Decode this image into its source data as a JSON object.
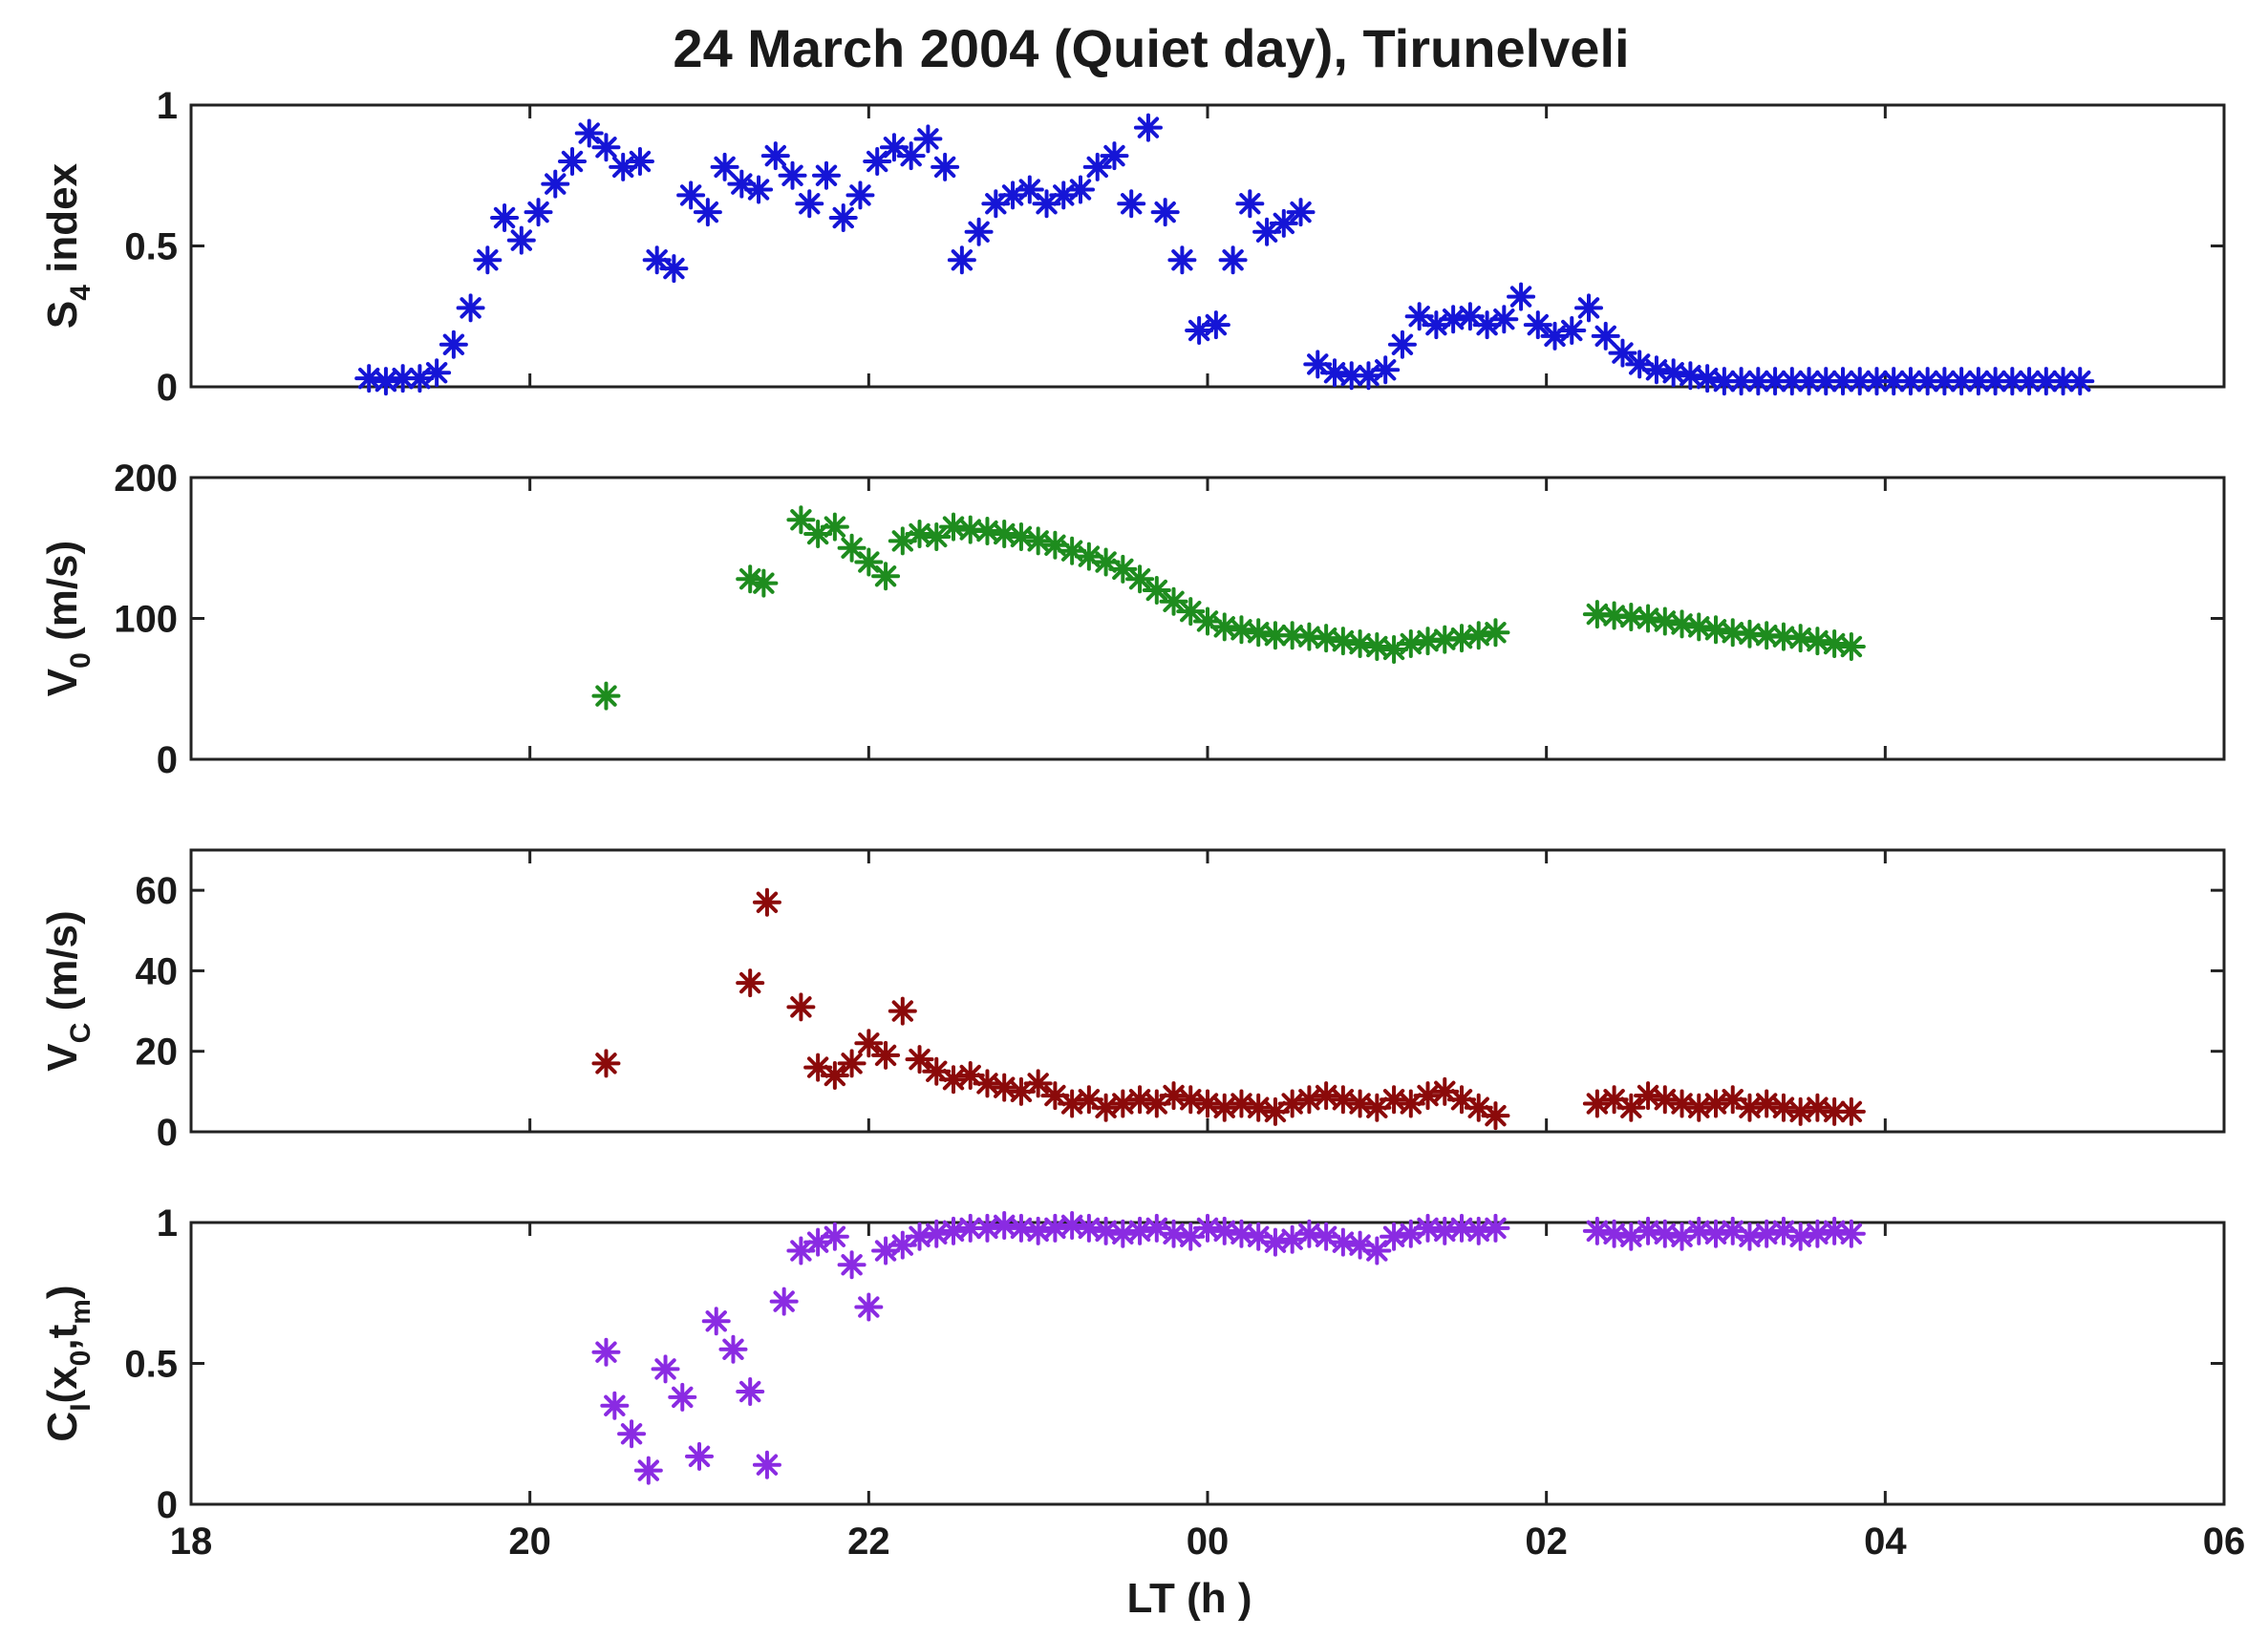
{
  "title": "24 March 2004 (Quiet day), Tirunelveli",
  "xlabel": "LT (h )",
  "panels_ylabels": [
    {
      "main": "S",
      "sub": "4",
      "rest": " index"
    },
    {
      "main": "V",
      "sub": "0",
      "rest": " (m/s)"
    },
    {
      "main": "V",
      "sub": "C",
      "rest": " (m/s)"
    },
    {
      "main": "C",
      "sub": "I",
      "rest": "(x",
      "sub2": "0",
      "rest2": ",t",
      "sub3": "m",
      "rest3": ")"
    }
  ],
  "chart_data": {
    "type": "scatter",
    "title": "24 March 2004 (Quiet day), Tirunelveli",
    "xlabel": "LT (h )",
    "xlim": [
      18,
      30
    ],
    "xticks": [
      18,
      20,
      22,
      24,
      26,
      28,
      30
    ],
    "xtick_labels": [
      "18",
      "20",
      "22",
      "00",
      "02",
      "04",
      "06"
    ],
    "x_unit_note": "hours after 00 LT wrap, 24 = 00, 26 = 02, 28 = 04",
    "shared_x": true,
    "marker": "asterisk",
    "panels": [
      {
        "ylabel": "S4 index",
        "ylim": [
          0,
          1
        ],
        "yticks": [
          0,
          0.5,
          1
        ],
        "ytick_labels": [
          "0",
          "0.5",
          "1"
        ],
        "color": "#1515d6",
        "series": [
          {
            "x": [
              19.05,
              19.15,
              19.25,
              19.35,
              19.45,
              19.55,
              19.65,
              19.75,
              19.85,
              19.95,
              20.05,
              20.15,
              20.25,
              20.35,
              20.45,
              20.55,
              20.65,
              20.75,
              20.85,
              20.95,
              21.05,
              21.15,
              21.25,
              21.35,
              21.45,
              21.55,
              21.65,
              21.75,
              21.85,
              21.95,
              22.05,
              22.15,
              22.25,
              22.35,
              22.45,
              22.55,
              22.65,
              22.75,
              22.85,
              22.95,
              23.05,
              23.15,
              23.25,
              23.35,
              23.45,
              23.55,
              23.65,
              23.75,
              23.85,
              23.95,
              24.05,
              24.15,
              24.25,
              24.35,
              24.45,
              24.55,
              24.65,
              24.75,
              24.85,
              24.95,
              25.05,
              25.15,
              25.25,
              25.35,
              25.45,
              25.55,
              25.65,
              25.75,
              25.85,
              25.95,
              26.05,
              26.15,
              26.25,
              26.35,
              26.45,
              26.55,
              26.65,
              26.75,
              26.85,
              26.95,
              27.05,
              27.15,
              27.25,
              27.35,
              27.45,
              27.55,
              27.65,
              27.75,
              27.85,
              27.95,
              28.05,
              28.15,
              28.25,
              28.35,
              28.45,
              28.55,
              28.65,
              28.75,
              28.85,
              28.95,
              29.05,
              29.15
            ],
            "y": [
              0.03,
              0.02,
              0.03,
              0.03,
              0.05,
              0.15,
              0.28,
              0.45,
              0.6,
              0.52,
              0.62,
              0.72,
              0.8,
              0.9,
              0.85,
              0.78,
              0.8,
              0.45,
              0.42,
              0.68,
              0.62,
              0.78,
              0.72,
              0.7,
              0.82,
              0.75,
              0.65,
              0.75,
              0.6,
              0.68,
              0.8,
              0.85,
              0.82,
              0.88,
              0.78,
              0.45,
              0.55,
              0.65,
              0.68,
              0.7,
              0.65,
              0.68,
              0.7,
              0.78,
              0.82,
              0.65,
              0.92,
              0.62,
              0.45,
              0.2,
              0.22,
              0.45,
              0.65,
              0.55,
              0.58,
              0.62,
              0.08,
              0.05,
              0.04,
              0.04,
              0.06,
              0.15,
              0.25,
              0.22,
              0.24,
              0.25,
              0.22,
              0.24,
              0.32,
              0.22,
              0.18,
              0.2,
              0.28,
              0.18,
              0.12,
              0.08,
              0.06,
              0.05,
              0.04,
              0.03,
              0.02,
              0.02,
              0.02,
              0.02,
              0.02,
              0.02,
              0.02,
              0.02,
              0.02,
              0.02,
              0.02,
              0.02,
              0.02,
              0.02,
              0.02,
              0.02,
              0.02,
              0.02,
              0.02,
              0.02,
              0.02,
              0.02
            ]
          }
        ]
      },
      {
        "ylabel": "V0 (m/s)",
        "ylim": [
          0,
          200
        ],
        "yticks": [
          0,
          100,
          200
        ],
        "ytick_labels": [
          "0",
          "100",
          "200"
        ],
        "color": "#1e8c1e",
        "series": [
          {
            "x": [
              20.45,
              21.3,
              21.38,
              21.6,
              21.7,
              21.8,
              21.9,
              22.0,
              22.1,
              22.2,
              22.3,
              22.4,
              22.5,
              22.6,
              22.7,
              22.8,
              22.9,
              23.0,
              23.1,
              23.2,
              23.3,
              23.4,
              23.5,
              23.6,
              23.7,
              23.8,
              23.9,
              24.0,
              24.1,
              24.2,
              24.3,
              24.4,
              24.5,
              24.6,
              24.7,
              24.8,
              24.9,
              25.0,
              25.1,
              25.2,
              25.3,
              25.4,
              25.5,
              25.6,
              25.7,
              26.3,
              26.4,
              26.5,
              26.6,
              26.7,
              26.8,
              26.9,
              27.0,
              27.1,
              27.2,
              27.3,
              27.4,
              27.5,
              27.6,
              27.7,
              27.8
            ],
            "y": [
              45,
              128,
              125,
              170,
              160,
              165,
              150,
              140,
              130,
              155,
              160,
              158,
              165,
              163,
              162,
              160,
              158,
              155,
              152,
              148,
              144,
              140,
              135,
              128,
              120,
              112,
              105,
              98,
              94,
              92,
              90,
              88,
              88,
              87,
              86,
              84,
              82,
              80,
              78,
              82,
              84,
              85,
              86,
              88,
              90,
              103,
              102,
              101,
              100,
              98,
              96,
              94,
              92,
              90,
              89,
              88,
              87,
              86,
              84,
              82,
              80
            ]
          }
        ]
      },
      {
        "ylabel": "VC (m/s)",
        "ylim": [
          0,
          70
        ],
        "yticks": [
          0,
          20,
          40,
          60
        ],
        "ytick_labels": [
          "0",
          "20",
          "40",
          "60"
        ],
        "color": "#8b0a0a",
        "series": [
          {
            "x": [
              20.45,
              21.3,
              21.4,
              21.6,
              21.7,
              21.8,
              21.9,
              22.0,
              22.1,
              22.2,
              22.3,
              22.4,
              22.5,
              22.6,
              22.7,
              22.8,
              22.9,
              23.0,
              23.1,
              23.2,
              23.3,
              23.4,
              23.5,
              23.6,
              23.7,
              23.8,
              23.9,
              24.0,
              24.1,
              24.2,
              24.3,
              24.4,
              24.5,
              24.6,
              24.7,
              24.8,
              24.9,
              25.0,
              25.1,
              25.2,
              25.3,
              25.4,
              25.5,
              25.6,
              25.7,
              26.3,
              26.4,
              26.5,
              26.6,
              26.7,
              26.8,
              26.9,
              27.0,
              27.1,
              27.2,
              27.3,
              27.4,
              27.5,
              27.6,
              27.7,
              27.8
            ],
            "y": [
              17,
              37,
              57,
              31,
              16,
              14,
              17,
              22,
              19,
              30,
              18,
              15,
              13,
              14,
              12,
              11,
              10,
              12,
              9,
              7,
              8,
              6,
              7,
              8,
              7,
              9,
              8,
              7,
              6,
              7,
              6,
              5,
              7,
              8,
              9,
              8,
              7,
              6,
              8,
              7,
              9,
              10,
              8,
              6,
              4,
              7,
              8,
              6,
              9,
              8,
              7,
              6,
              7,
              8,
              6,
              7,
              6,
              5,
              6,
              5,
              5
            ]
          }
        ]
      },
      {
        "ylabel": "CI(x0,tm)",
        "ylim": [
          0,
          1
        ],
        "yticks": [
          0,
          0.5,
          1
        ],
        "ytick_labels": [
          "0",
          "0.5",
          "1"
        ],
        "color": "#8a2be2",
        "series": [
          {
            "x": [
              20.45,
              20.5,
              20.6,
              20.7,
              20.8,
              20.9,
              21.0,
              21.1,
              21.2,
              21.3,
              21.4,
              21.5,
              21.6,
              21.7,
              21.8,
              21.9,
              22.0,
              22.1,
              22.2,
              22.3,
              22.4,
              22.5,
              22.6,
              22.7,
              22.8,
              22.9,
              23.0,
              23.1,
              23.2,
              23.3,
              23.4,
              23.5,
              23.6,
              23.7,
              23.8,
              23.9,
              24.0,
              24.1,
              24.2,
              24.3,
              24.4,
              24.5,
              24.6,
              24.7,
              24.8,
              24.9,
              25.0,
              25.1,
              25.2,
              25.3,
              25.4,
              25.5,
              25.6,
              25.7,
              26.3,
              26.4,
              26.5,
              26.6,
              26.7,
              26.8,
              26.9,
              27.0,
              27.1,
              27.2,
              27.3,
              27.4,
              27.5,
              27.6,
              27.7,
              27.8
            ],
            "y": [
              0.54,
              0.35,
              0.25,
              0.12,
              0.48,
              0.38,
              0.17,
              0.65,
              0.55,
              0.4,
              0.14,
              0.72,
              0.9,
              0.93,
              0.95,
              0.85,
              0.7,
              0.9,
              0.92,
              0.95,
              0.96,
              0.97,
              0.98,
              0.98,
              0.99,
              0.98,
              0.97,
              0.98,
              0.99,
              0.98,
              0.97,
              0.96,
              0.97,
              0.98,
              0.96,
              0.95,
              0.98,
              0.97,
              0.96,
              0.95,
              0.93,
              0.94,
              0.96,
              0.95,
              0.93,
              0.92,
              0.9,
              0.95,
              0.96,
              0.98,
              0.97,
              0.98,
              0.97,
              0.98,
              0.97,
              0.96,
              0.95,
              0.97,
              0.96,
              0.95,
              0.97,
              0.96,
              0.97,
              0.95,
              0.96,
              0.97,
              0.95,
              0.96,
              0.97,
              0.96
            ]
          }
        ]
      }
    ]
  }
}
